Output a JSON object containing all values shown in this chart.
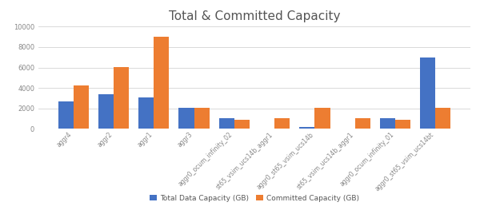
{
  "title": "Total & Committed Capacity",
  "categories": [
    "aggr4",
    "aggr2",
    "aggr1",
    "aggr3",
    "aggr0_ocum_infinity_02",
    "st65_vsim_ucs14b_aggr1",
    "aggr0_st65_vsim_ucs14b",
    "st65_vsim_ucs14b_aggr1",
    "aggr0_ocum_infinity_01",
    "aggr0_st65_vsim_ucs14bt"
  ],
  "total_data": [
    2700,
    3400,
    3050,
    2050,
    1000,
    0,
    200,
    0,
    1000,
    7000
  ],
  "committed": [
    4250,
    6050,
    9050,
    2050,
    900,
    1000,
    2050,
    1000,
    900,
    2050
  ],
  "bar_color_total": "#4472c4",
  "bar_color_committed": "#ed7d31",
  "ylim": [
    0,
    10000
  ],
  "yticks": [
    0,
    2000,
    4000,
    6000,
    8000,
    10000
  ],
  "legend_total": "Total Data Capacity (GB)",
  "legend_committed": "Committed Capacity (GB)",
  "title_fontsize": 11,
  "tick_label_color": "#888888",
  "title_color": "#555555",
  "background_color": "#ffffff",
  "grid_color": "#d9d9d9"
}
